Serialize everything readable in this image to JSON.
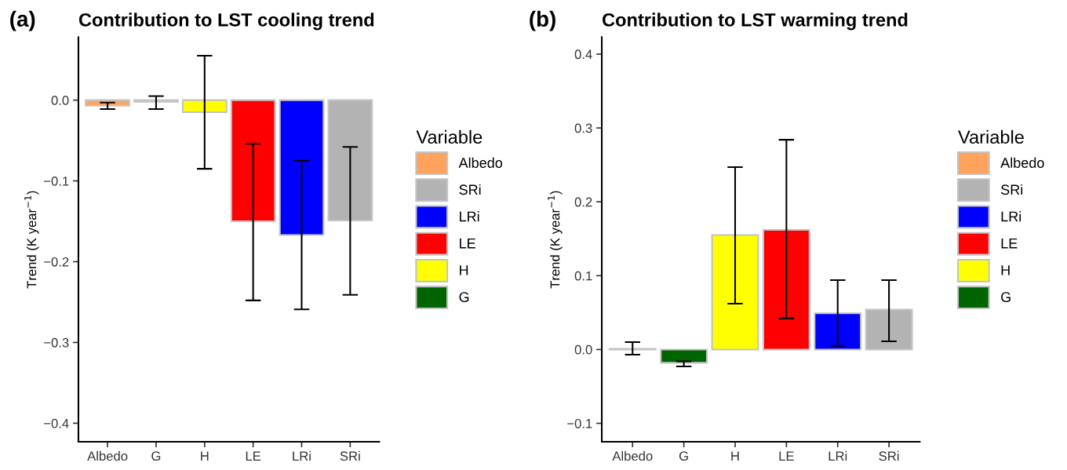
{
  "chart_data": [
    {
      "type": "bar",
      "title": "Contribution to LST cooling trend",
      "ylabel": "Trend (K year$^{−1}$)",
      "legend_title": "Variable",
      "annotations": [
        "(a)"
      ],
      "categories": [
        "Albedo",
        "G",
        "H",
        "LE",
        "LRi",
        "SRi"
      ],
      "stacked": true,
      "legend": "right",
      "grid": false,
      "ylim": [
        -0.423,
        0.078
      ],
      "yticks": [
        {
          "value": 0.0,
          "label": "0.0"
        },
        {
          "value": -0.1,
          "label": "−0.1"
        },
        {
          "value": -0.2,
          "label": "−0.2"
        },
        {
          "value": -0.3,
          "label": "−0.3"
        },
        {
          "value": -0.4,
          "label": "−0.4"
        }
      ],
      "series": [
        {
          "name": "Albedo",
          "color": "#ffa35c",
          "values": [
            -0.007,
            null,
            null,
            null,
            null,
            null
          ],
          "errors": [
            [
              -0.011,
              -0.003
            ],
            null,
            null,
            null,
            null,
            null
          ]
        },
        {
          "name": "SRi",
          "color": "#b3b3b3",
          "values": [
            null,
            null,
            null,
            null,
            null,
            -0.149
          ],
          "errors": [
            null,
            null,
            null,
            null,
            null,
            [
              -0.241,
              -0.058
            ]
          ]
        },
        {
          "name": "LRi",
          "color": "#0000ff",
          "values": [
            null,
            null,
            null,
            null,
            -0.167,
            null
          ],
          "errors": [
            null,
            null,
            null,
            null,
            [
              -0.259,
              -0.075
            ],
            null
          ]
        },
        {
          "name": "LE",
          "color": "#ff0000",
          "values": [
            null,
            null,
            null,
            -0.15,
            null,
            null
          ],
          "errors": [
            null,
            null,
            null,
            [
              -0.248,
              -0.054
            ],
            null,
            null
          ]
        },
        {
          "name": "H",
          "color": "#ffff00",
          "values": [
            null,
            null,
            -0.015,
            null,
            null,
            null
          ],
          "errors": [
            null,
            null,
            [
              -0.085,
              0.055
            ],
            null,
            null,
            null
          ]
        },
        {
          "name": "G",
          "color": "#006400",
          "values": [
            null,
            -0.002,
            null,
            null,
            null,
            null
          ],
          "errors": [
            null,
            [
              -0.011,
              0.005
            ],
            null,
            null,
            null,
            null
          ]
        }
      ]
    },
    {
      "type": "bar",
      "title": "Contribution to LST warming trend",
      "ylabel": "Trend (K year$^{−1}$)",
      "legend_title": "Variable",
      "annotations": [
        "(b)"
      ],
      "categories": [
        "Albedo",
        "G",
        "H",
        "LE",
        "LRi",
        "SRi"
      ],
      "stacked": true,
      "legend": "right",
      "grid": false,
      "ylim": [
        -0.125,
        0.423
      ],
      "yticks": [
        {
          "value": -0.1,
          "label": "−0.1"
        },
        {
          "value": 0.0,
          "label": "0.0"
        },
        {
          "value": 0.1,
          "label": "0.1"
        },
        {
          "value": 0.2,
          "label": "0.2"
        },
        {
          "value": 0.3,
          "label": "0.3"
        },
        {
          "value": 0.4,
          "label": "0.4"
        }
      ],
      "series": [
        {
          "name": "Albedo",
          "color": "#ffa35c",
          "values": [
            0.001,
            null,
            null,
            null,
            null,
            null
          ],
          "errors": [
            [
              -0.007,
              0.01
            ],
            null,
            null,
            null,
            null,
            null
          ]
        },
        {
          "name": "SRi",
          "color": "#b3b3b3",
          "values": [
            null,
            null,
            null,
            null,
            null,
            0.054
          ],
          "errors": [
            null,
            null,
            null,
            null,
            null,
            [
              0.011,
              0.094
            ]
          ]
        },
        {
          "name": "LRi",
          "color": "#0000ff",
          "values": [
            null,
            null,
            null,
            null,
            0.049,
            null
          ],
          "errors": [
            null,
            null,
            null,
            null,
            [
              0.005,
              0.094
            ],
            null
          ]
        },
        {
          "name": "LE",
          "color": "#ff0000",
          "values": [
            null,
            null,
            null,
            0.162,
            null,
            null
          ],
          "errors": [
            null,
            null,
            null,
            [
              0.042,
              0.284
            ],
            null,
            null
          ]
        },
        {
          "name": "H",
          "color": "#ffff00",
          "values": [
            null,
            null,
            0.155,
            null,
            null,
            null
          ],
          "errors": [
            null,
            null,
            [
              0.062,
              0.247
            ],
            null,
            null,
            null
          ]
        },
        {
          "name": "G",
          "color": "#006400",
          "values": [
            null,
            -0.018,
            null,
            null,
            null,
            null
          ],
          "errors": [
            null,
            [
              -0.023,
              -0.016
            ],
            null,
            null,
            null,
            null
          ]
        }
      ]
    }
  ]
}
